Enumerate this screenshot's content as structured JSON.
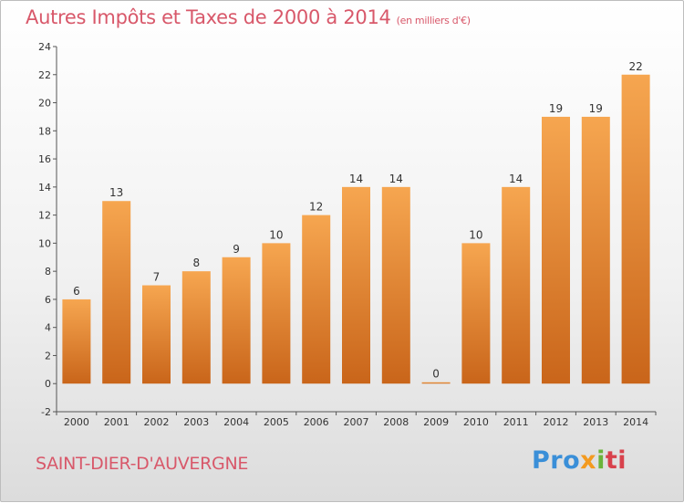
{
  "title": "Autres Impôts et Taxes de 2000 à 2014",
  "unit_note": "(en milliers d'€)",
  "commune": "SAINT-DIER-D'AUVERGNE",
  "brand": {
    "p1": "Pro",
    "p2": "x",
    "p3": "i",
    "p4": "ti"
  },
  "colors": {
    "title": "#d8586a",
    "bar_light": "#f6a650",
    "bar_dark": "#c9651a",
    "axis": "#333333"
  },
  "chart_data": {
    "type": "bar",
    "categories": [
      "2000",
      "2001",
      "2002",
      "2003",
      "2004",
      "2005",
      "2006",
      "2007",
      "2008",
      "2009",
      "2010",
      "2011",
      "2012",
      "2013",
      "2014"
    ],
    "values": [
      6,
      13,
      7,
      8,
      9,
      10,
      12,
      14,
      14,
      0,
      10,
      14,
      19,
      19,
      22
    ],
    "yticks": [
      -2,
      0,
      2,
      4,
      6,
      8,
      10,
      12,
      14,
      16,
      18,
      20,
      22,
      24
    ],
    "ylim": [
      -2,
      24
    ],
    "grid": false,
    "legend": "none"
  }
}
